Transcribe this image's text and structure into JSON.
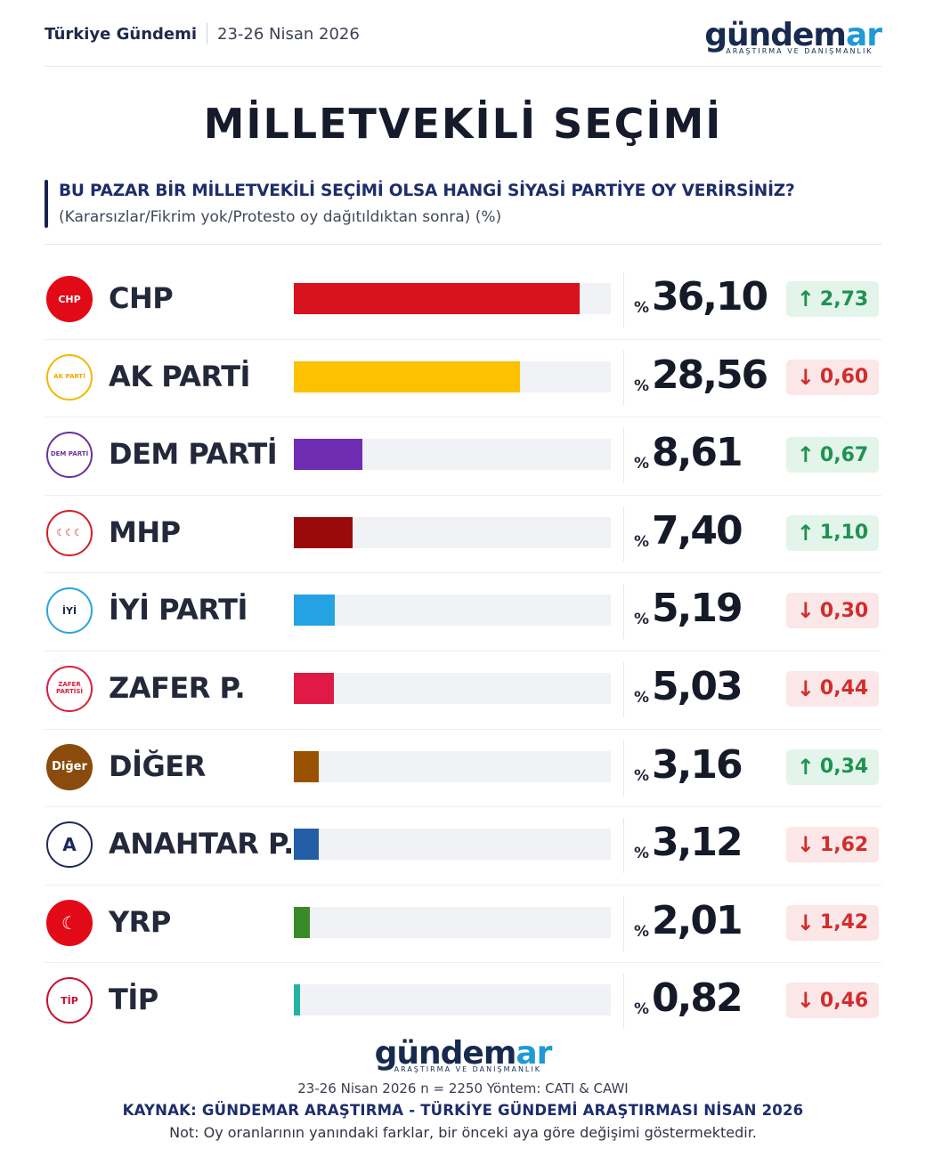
{
  "header": {
    "section": "Türkiye Gündemi",
    "date": "23-26 Nisan 2026",
    "brand_word": "gündem",
    "brand_word_accent": "ar",
    "brand_tag": "ARAŞTIRMA VE DANIŞMANLIK"
  },
  "colors": {
    "navy": "#172a4f",
    "accent_blue": "#1f9ad7",
    "up": "#1d9350",
    "down": "#d32c2c"
  },
  "chart_data": {
    "type": "bar",
    "orientation": "horizontal",
    "title": "MİLLETVEKİLİ SEÇİMİ",
    "question": "BU PAZAR BİR MİLLETVEKİLİ SEÇİMİ OLSA HANGİ SİYASİ PARTİYE OY VERİRSİNİZ?",
    "subtitle": "(Kararsızlar/Fikrim yok/Protesto oy dağıtıldıktan sonra) (%)",
    "value_prefix": "%",
    "xlim": [
      0,
      40
    ],
    "grid": false,
    "legend": "none",
    "rows": [
      {
        "party": "CHP",
        "logo_text": "CHP",
        "logo_bg": "#e30a17",
        "logo_fg": "#ffffff",
        "logo_border": "#e30a17",
        "value": "36,10",
        "value_num": 36.1,
        "bar_color": "#d9121f",
        "change": "2,73",
        "direction": "up"
      },
      {
        "party": "AK PARTİ",
        "logo_text": "AK PARTİ",
        "logo_bg": "#ffffff",
        "logo_fg": "#f2a900",
        "logo_border": "#f2b800",
        "value": "28,56",
        "value_num": 28.56,
        "bar_color": "#fcc100",
        "change": "0,60",
        "direction": "down"
      },
      {
        "party": "DEM PARTİ",
        "logo_text": "DEM PARTİ",
        "logo_bg": "#ffffff",
        "logo_fg": "#6b2fa0",
        "logo_border": "#6b2fa0",
        "value": "8,61",
        "value_num": 8.61,
        "bar_color": "#6f2db3",
        "change": "0,67",
        "direction": "up"
      },
      {
        "party": "MHP",
        "logo_text": "☾☾☾",
        "logo_bg": "#ffffff",
        "logo_fg": "#d31f26",
        "logo_border": "#d31f26",
        "value": "7,40",
        "value_num": 7.4,
        "bar_color": "#9b0a0a",
        "change": "1,10",
        "direction": "up"
      },
      {
        "party": "İYİ PARTİ",
        "logo_text": "İYİ",
        "logo_bg": "#ffffff",
        "logo_fg": "#1d2a4a",
        "logo_border": "#29a4e0",
        "value": "5,19",
        "value_num": 5.19,
        "bar_color": "#25a2e2",
        "change": "0,30",
        "direction": "down"
      },
      {
        "party": "ZAFER P.",
        "logo_text": "ZAFER PARTİSİ",
        "logo_bg": "#ffffff",
        "logo_fg": "#d91f3c",
        "logo_border": "#d91f3c",
        "value": "5,03",
        "value_num": 5.03,
        "bar_color": "#e01a45",
        "change": "0,44",
        "direction": "down"
      },
      {
        "party": "DİĞER",
        "logo_text": "Diğer",
        "logo_bg": "#8a4b0c",
        "logo_fg": "#ffffff",
        "logo_border": "#8a4b0c",
        "value": "3,16",
        "value_num": 3.16,
        "bar_color": "#9a5200",
        "change": "0,34",
        "direction": "up"
      },
      {
        "party": "ANAHTAR P.",
        "logo_text": "A",
        "logo_bg": "#ffffff",
        "logo_fg": "#1d2a5a",
        "logo_border": "#1d2a5a",
        "value": "3,12",
        "value_num": 3.12,
        "bar_color": "#225fa7",
        "change": "1,62",
        "direction": "down"
      },
      {
        "party": "YRP",
        "logo_text": "☾",
        "logo_bg": "#e30a17",
        "logo_fg": "#ffffff",
        "logo_border": "#e30a17",
        "value": "2,01",
        "value_num": 2.01,
        "bar_color": "#3a8a2a",
        "change": "1,42",
        "direction": "down"
      },
      {
        "party": "TİP",
        "logo_text": "TİP",
        "logo_bg": "#ffffff",
        "logo_fg": "#c8102e",
        "logo_border": "#c8102e",
        "value": "0,82",
        "value_num": 0.82,
        "bar_color": "#21b4a0",
        "change": "0,46",
        "direction": "down"
      }
    ]
  },
  "footer": {
    "method": "23-26 Nisan 2026 n = 2250 Yöntem: CATI & CAWI",
    "source": "KAYNAK: GÜNDEMAR ARAŞTIRMA - TÜRKİYE GÜNDEMİ ARAŞTIRMASI NİSAN 2026",
    "note": "Not: Oy oranlarının yanındaki farklar, bir önceki aya göre değişimi göstermektedir."
  }
}
